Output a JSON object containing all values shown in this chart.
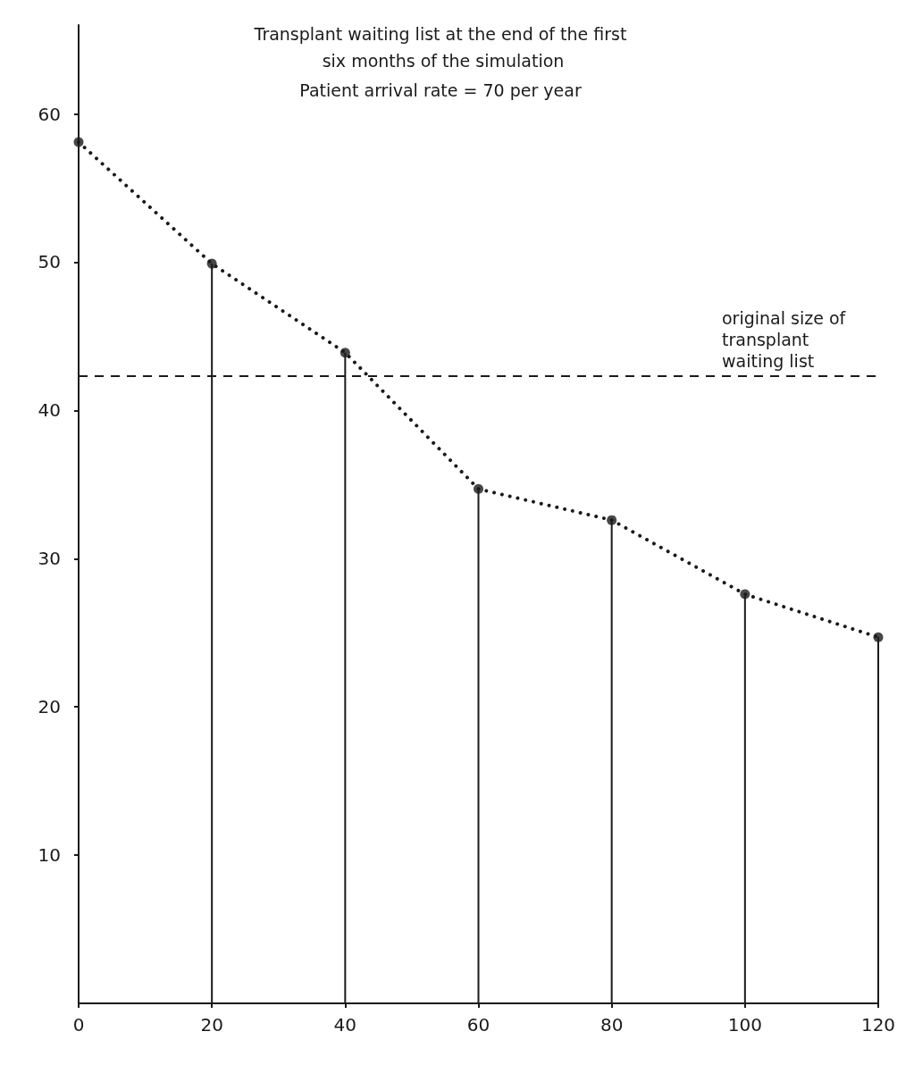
{
  "chart_data": {
    "type": "lollipop",
    "title": "Transplant waiting list at the end of the first six months of the simulation",
    "subtitle": "Patient arrival rate = 70 per year",
    "x": [
      0,
      20,
      40,
      60,
      80,
      100,
      120
    ],
    "series": [
      {
        "color": "#1a1a1a",
        "marker": "circle",
        "values": [
          58.1,
          49.9,
          43.9,
          34.7,
          32.6,
          27.6,
          24.7
        ]
      },
      {
        "type": "line",
        "color": "#1a1a1a",
        "marker": "none",
        "line_style": "dotted",
        "x": [
          0,
          20,
          40,
          60,
          80,
          100,
          120
        ],
        "values": [
          58.1,
          49.9,
          43.9,
          34.7,
          32.6,
          27.6,
          24.7
        ]
      }
    ],
    "xlim": [
      0,
      120
    ],
    "xticks": [
      0,
      20,
      40,
      60,
      80,
      100,
      120
    ],
    "ylim": [
      0,
      66
    ],
    "yticks": [
      10,
      20,
      30,
      40,
      50,
      60
    ],
    "ref_lines": [
      {
        "axis": "y",
        "value": 42.3,
        "label": "original size of transplant waiting list",
        "line_style": "dashed",
        "color": "#1a1a1a"
      }
    ],
    "grid": false
  }
}
